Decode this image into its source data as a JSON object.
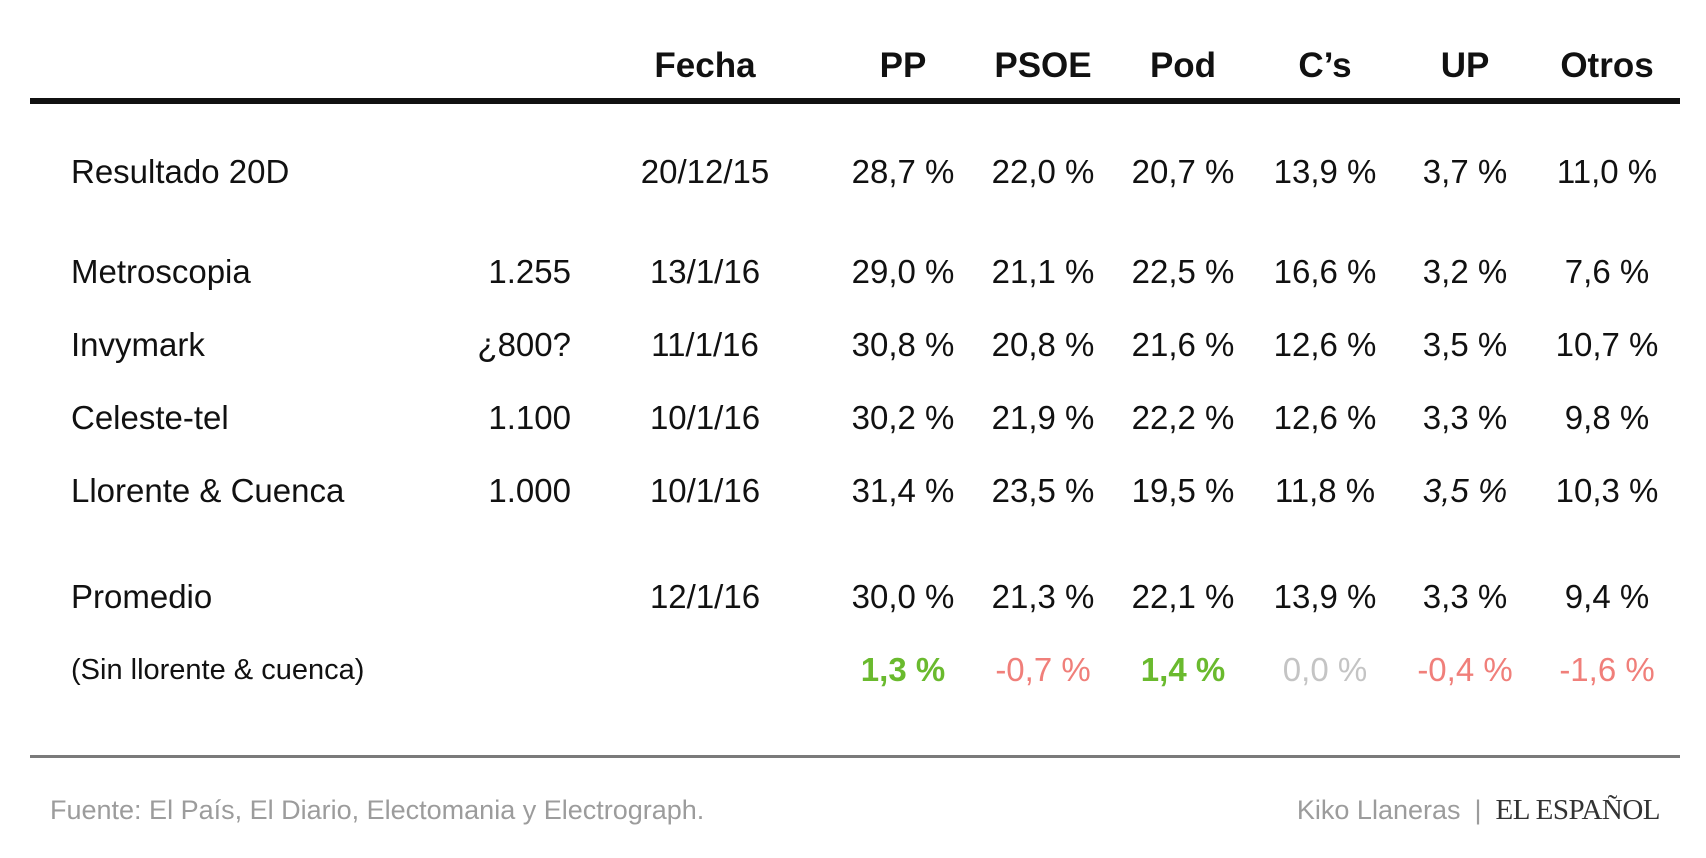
{
  "chart_data": {
    "type": "table",
    "columns": [
      "",
      "",
      "Fecha",
      "PP",
      "PSOE",
      "Pod",
      "C’s",
      "UP",
      "Otros"
    ],
    "rows": [
      {
        "label": "Resultado 20D",
        "muestra": "",
        "fecha": "20/12/15",
        "values": [
          "28,7 %",
          "22,0 %",
          "20,7 %",
          "13,9 %",
          "3,7 %",
          "11,0 %"
        ]
      },
      {
        "label": "Metroscopia",
        "muestra": "1.255",
        "fecha": "13/1/16",
        "values": [
          "29,0 %",
          "21,1 %",
          "22,5 %",
          "16,6 %",
          "3,2 %",
          "7,6 %"
        ]
      },
      {
        "label": "Invymark",
        "muestra": "¿800?",
        "fecha": "11/1/16",
        "values": [
          "30,8 %",
          "20,8 %",
          "21,6 %",
          "12,6 %",
          "3,5 %",
          "10,7 %"
        ]
      },
      {
        "label": "Celeste-tel",
        "muestra": "1.100",
        "fecha": "10/1/16",
        "values": [
          "30,2 %",
          "21,9 %",
          "22,2 %",
          "12,6 %",
          "3,3 %",
          "9,8 %"
        ]
      },
      {
        "label": "Llorente & Cuenca",
        "muestra": "1.000",
        "fecha": "10/1/16",
        "values": [
          "31,4 %",
          "23,5 %",
          "19,5 %",
          "11,8 %",
          "3,5 %",
          "10,3 %"
        ]
      },
      {
        "label": "Promedio",
        "muestra": "",
        "fecha": "12/1/16",
        "values": [
          "30,0 %",
          "21,3 %",
          "22,1 %",
          "13,9 %",
          "3,3 %",
          "9,4 %"
        ]
      }
    ],
    "diff_row": {
      "label": "(Sin llorente & cuenca)",
      "values": [
        "1,3 %",
        "-0,7 %",
        "1,4 %",
        "0,0 %",
        "-0,4 %",
        "-1,6 %"
      ],
      "signs": [
        "pos",
        "neg",
        "pos",
        "neutral",
        "neg",
        "neg"
      ]
    },
    "colors": {
      "positive": "#6aba2e",
      "negative": "#f07f7a",
      "neutral": "#c4c4c4"
    }
  },
  "footer": {
    "source": "Fuente: El País, El Diario, Electomania y Electrograph.",
    "author": "Kiko Llaneras",
    "separator": "|",
    "brand": "EL ESPAÑOL"
  }
}
